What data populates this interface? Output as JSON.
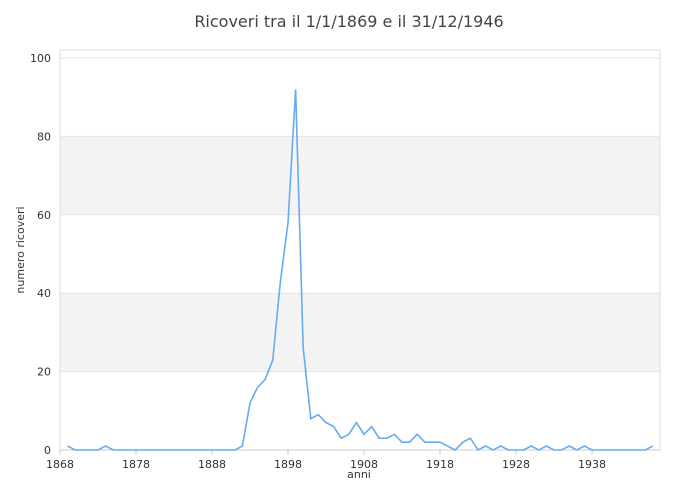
{
  "chart_data": {
    "type": "line",
    "title": "Ricoveri tra il 1/1/1869 e il 31/12/1946",
    "xlabel": "anni",
    "ylabel": "numero ricoveri",
    "xlim": [
      1868,
      1947
    ],
    "ylim": [
      0,
      100
    ],
    "xticks": [
      1868,
      1878,
      1888,
      1898,
      1908,
      1918,
      1928,
      1938
    ],
    "yticks": [
      0,
      20,
      40,
      60,
      80,
      100
    ],
    "grid": "alternating horizontal bands",
    "line_color": "#66aaf0",
    "band_color": "#f3f3f3",
    "x": [
      1869,
      1870,
      1871,
      1872,
      1873,
      1874,
      1875,
      1876,
      1877,
      1878,
      1879,
      1880,
      1881,
      1882,
      1883,
      1884,
      1885,
      1886,
      1887,
      1888,
      1889,
      1890,
      1891,
      1892,
      1893,
      1894,
      1895,
      1896,
      1897,
      1898,
      1899,
      1900,
      1901,
      1902,
      1903,
      1904,
      1905,
      1906,
      1907,
      1908,
      1909,
      1910,
      1911,
      1912,
      1913,
      1914,
      1915,
      1916,
      1917,
      1918,
      1919,
      1920,
      1921,
      1922,
      1923,
      1924,
      1925,
      1926,
      1927,
      1928,
      1929,
      1930,
      1931,
      1932,
      1933,
      1934,
      1935,
      1936,
      1937,
      1938,
      1939,
      1940,
      1941,
      1942,
      1943,
      1944,
      1945,
      1946
    ],
    "y": [
      1,
      0,
      0,
      0,
      0,
      1,
      0,
      0,
      0,
      0,
      0,
      0,
      0,
      0,
      0,
      0,
      0,
      0,
      0,
      0,
      0,
      0,
      0,
      1,
      12,
      16,
      18,
      23,
      43,
      58,
      92,
      26,
      8,
      9,
      7,
      6,
      3,
      4,
      7,
      4,
      6,
      3,
      3,
      4,
      2,
      2,
      4,
      2,
      2,
      2,
      1,
      0,
      2,
      3,
      0,
      1,
      0,
      1,
      0,
      0,
      0,
      1,
      0,
      1,
      0,
      0,
      1,
      0,
      1,
      0,
      0,
      0,
      0,
      0,
      0,
      0,
      0,
      1
    ]
  }
}
